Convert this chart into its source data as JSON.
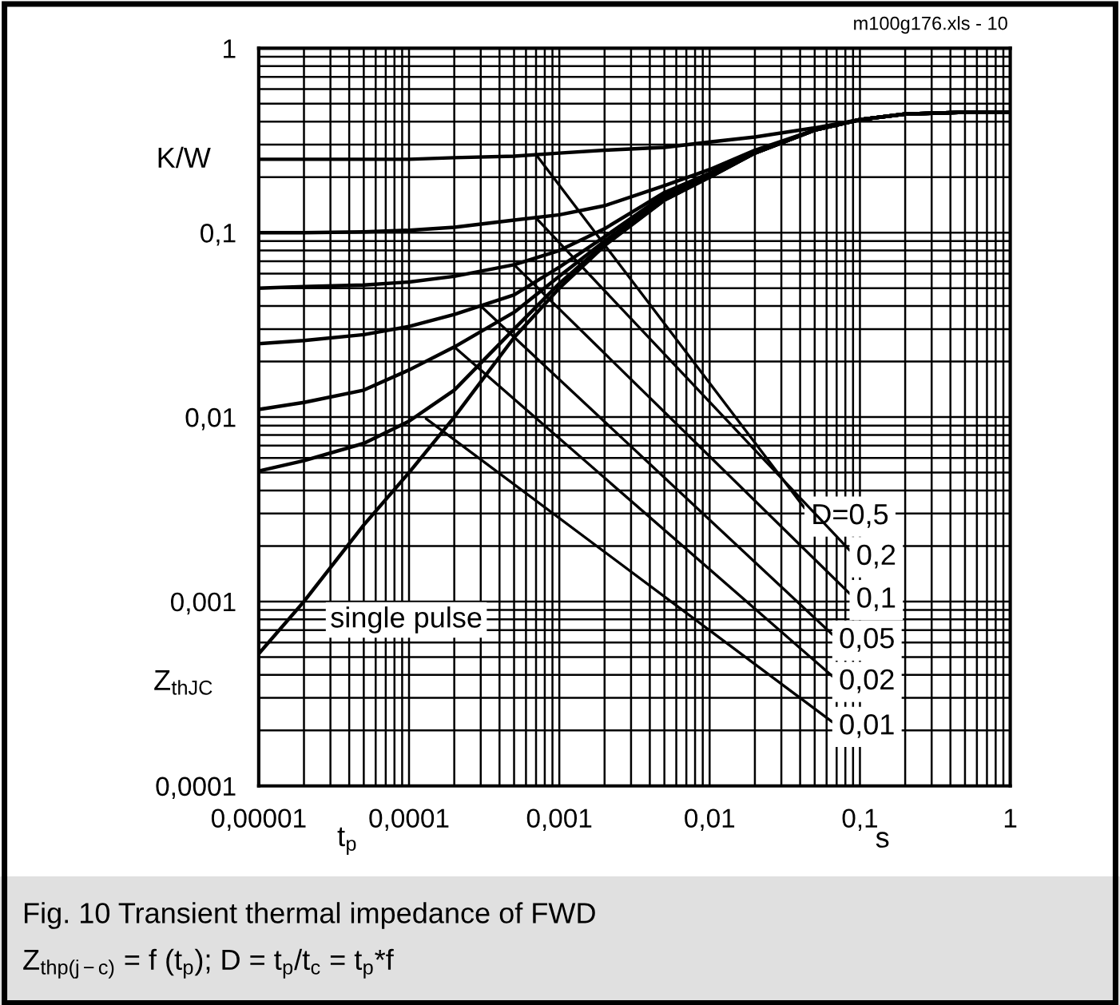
{
  "chart_data": {
    "type": "line",
    "title": "Fig. 10 Transient thermal impedance of FWD",
    "subtitle": "Z$_{thp(j−c)}$ = f (t$_{p}$); D = t$_{p}$/t$_{c}$ = t$_{p}$*f",
    "xlabel": "s",
    "ylabel": "K/W",
    "log": "xy",
    "grid": true,
    "legend": false,
    "marker": "none",
    "line_style": "solid",
    "xlim": [
      1e-05,
      1
    ],
    "ylim": [
      0.0001,
      1
    ],
    "xticks": [
      {
        "value": 1e-05,
        "label": "0,00001"
      },
      {
        "value": 0.0001,
        "label": "0,0001"
      },
      {
        "value": 0.001,
        "label": "0,001"
      },
      {
        "value": 0.01,
        "label": "0,01"
      },
      {
        "value": 0.1,
        "label": "0,1"
      },
      {
        "value": 1,
        "label": "1"
      }
    ],
    "yticks": [
      {
        "value": 0.0001,
        "label": "0,0001"
      },
      {
        "value": 0.001,
        "label": "0,001"
      },
      {
        "value": 0.01,
        "label": "0,01"
      },
      {
        "value": 0.1,
        "label": "0,1"
      },
      {
        "value": 1,
        "label": "1"
      }
    ],
    "x": [
      1e-05,
      2e-05,
      5e-05,
      0.0001,
      0.0002,
      0.0005,
      0.001,
      0.002,
      0.005,
      0.01,
      0.02,
      0.05,
      0.1,
      0.2,
      0.5,
      1
    ],
    "series": [
      {
        "color": "#000000",
        "values": [
          0.25,
          0.25,
          0.25,
          0.25,
          0.255,
          0.26,
          0.27,
          0.28,
          0.29,
          0.31,
          0.33,
          0.37,
          0.41,
          0.44,
          0.45,
          0.45
        ]
      },
      {
        "color": "#000000",
        "values": [
          0.1,
          0.1,
          0.101,
          0.103,
          0.107,
          0.117,
          0.125,
          0.14,
          0.18,
          0.22,
          0.28,
          0.36,
          0.41,
          0.44,
          0.45,
          0.45
        ]
      },
      {
        "color": "#000000",
        "values": [
          0.05,
          0.051,
          0.052,
          0.054,
          0.058,
          0.067,
          0.08,
          0.105,
          0.165,
          0.21,
          0.275,
          0.36,
          0.41,
          0.44,
          0.45,
          0.45
        ]
      },
      {
        "color": "#000000",
        "values": [
          0.025,
          0.026,
          0.028,
          0.031,
          0.036,
          0.046,
          0.065,
          0.095,
          0.16,
          0.205,
          0.27,
          0.36,
          0.41,
          0.44,
          0.45,
          0.45
        ]
      },
      {
        "color": "#000000",
        "values": [
          0.011,
          0.012,
          0.014,
          0.018,
          0.024,
          0.037,
          0.058,
          0.09,
          0.155,
          0.2,
          0.27,
          0.36,
          0.41,
          0.44,
          0.45,
          0.45
        ]
      },
      {
        "color": "#000000",
        "values": [
          0.0051,
          0.0058,
          0.0072,
          0.0095,
          0.014,
          0.03,
          0.053,
          0.087,
          0.15,
          0.2,
          0.27,
          0.36,
          0.41,
          0.44,
          0.45,
          0.45
        ]
      },
      {
        "color": "#000000",
        "values": [
          0.00052,
          0.001,
          0.0026,
          0.005,
          0.01,
          0.027,
          0.05,
          0.085,
          0.15,
          0.2,
          0.27,
          0.36,
          0.41,
          0.44,
          0.45,
          0.45
        ]
      }
    ],
    "annotations": [
      {
        "text": "D=0,5",
        "x": 0.0007,
        "y": 0.265
      },
      {
        "text": "0,2",
        "x": 0.0007,
        "y": 0.12
      },
      {
        "text": "0,1",
        "x": 0.0005,
        "y": 0.067
      },
      {
        "text": "0,05",
        "x": 0.0003,
        "y": 0.04
      },
      {
        "text": "0,02",
        "x": 0.0002,
        "y": 0.024
      },
      {
        "text": "0,01",
        "x": 0.00013,
        "y": 0.0098
      },
      "single pulse",
      "Z$_{thJC}$",
      "t$_{p}$",
      "m100g176.xls - 10"
    ]
  }
}
